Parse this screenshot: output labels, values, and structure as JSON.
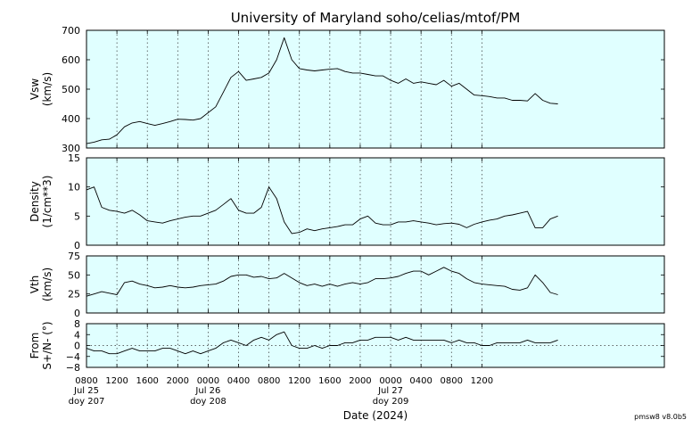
{
  "title": "University of Maryland  soho/celias/mtof/PM",
  "footer_note": "pmsw8 v8.0b5",
  "colors": {
    "panel_bg": "#e0ffff",
    "trace": "#000000",
    "grid": "#333333",
    "zero_line": "#333333"
  },
  "chart_data": [
    {
      "type": "line",
      "panel": "vsw",
      "ylabel_lines": [
        "Vsw",
        "(km/s)"
      ],
      "ylim": [
        300,
        700
      ],
      "yticks": [
        300,
        400,
        500,
        600,
        700
      ],
      "ytick_labels": [
        "300",
        "400",
        "500",
        "600",
        "700"
      ],
      "points": [
        [
          0,
          315
        ],
        [
          1,
          320
        ],
        [
          2,
          328
        ],
        [
          3,
          330
        ],
        [
          4,
          345
        ],
        [
          5,
          372
        ],
        [
          6,
          385
        ],
        [
          7,
          390
        ],
        [
          8,
          383
        ],
        [
          9,
          377
        ],
        [
          10,
          383
        ],
        [
          11,
          390
        ],
        [
          12,
          398
        ],
        [
          13,
          397
        ],
        [
          14,
          395
        ],
        [
          15,
          400
        ],
        [
          16,
          420
        ],
        [
          17,
          440
        ],
        [
          18,
          490
        ],
        [
          19,
          540
        ],
        [
          20,
          560
        ],
        [
          21,
          530
        ],
        [
          22,
          535
        ],
        [
          23,
          540
        ],
        [
          24,
          555
        ],
        [
          25,
          600
        ],
        [
          26,
          675
        ],
        [
          27,
          600
        ],
        [
          28,
          570
        ],
        [
          29,
          565
        ],
        [
          30,
          562
        ],
        [
          31,
          565
        ],
        [
          32,
          568
        ],
        [
          33,
          570
        ],
        [
          34,
          560
        ],
        [
          35,
          555
        ],
        [
          36,
          555
        ],
        [
          37,
          550
        ],
        [
          38,
          545
        ],
        [
          39,
          545
        ],
        [
          40,
          530
        ],
        [
          41,
          520
        ],
        [
          42,
          535
        ],
        [
          43,
          520
        ],
        [
          44,
          525
        ],
        [
          45,
          520
        ],
        [
          46,
          515
        ],
        [
          47,
          530
        ],
        [
          48,
          510
        ],
        [
          49,
          520
        ],
        [
          50,
          500
        ],
        [
          51,
          480
        ],
        [
          52,
          478
        ],
        [
          53,
          475
        ],
        [
          54,
          470
        ],
        [
          55,
          470
        ],
        [
          56,
          462
        ],
        [
          57,
          462
        ],
        [
          58,
          460
        ],
        [
          59,
          485
        ],
        [
          60,
          462
        ],
        [
          61,
          452
        ],
        [
          62,
          450
        ]
      ]
    },
    {
      "type": "line",
      "panel": "density",
      "ylabel_lines": [
        "Density",
        "(1/cm**3)"
      ],
      "ylim": [
        0,
        15
      ],
      "yticks": [
        0,
        5,
        10,
        15
      ],
      "ytick_labels": [
        "0",
        "5",
        "10",
        "15"
      ],
      "points": [
        [
          0,
          9.5
        ],
        [
          1,
          10
        ],
        [
          2,
          6.5
        ],
        [
          3,
          6
        ],
        [
          4,
          5.8
        ],
        [
          5,
          5.5
        ],
        [
          6,
          6
        ],
        [
          7,
          5.2
        ],
        [
          8,
          4.2
        ],
        [
          9,
          4
        ],
        [
          10,
          3.8
        ],
        [
          11,
          4.2
        ],
        [
          12,
          4.5
        ],
        [
          13,
          4.8
        ],
        [
          14,
          5
        ],
        [
          15,
          5
        ],
        [
          16,
          5.5
        ],
        [
          17,
          6
        ],
        [
          18,
          7
        ],
        [
          19,
          8
        ],
        [
          20,
          6
        ],
        [
          21,
          5.5
        ],
        [
          22,
          5.5
        ],
        [
          23,
          6.5
        ],
        [
          24,
          10
        ],
        [
          25,
          8
        ],
        [
          26,
          4
        ],
        [
          27,
          2
        ],
        [
          28,
          2.2
        ],
        [
          29,
          2.8
        ],
        [
          30,
          2.5
        ],
        [
          31,
          2.8
        ],
        [
          32,
          3
        ],
        [
          33,
          3.2
        ],
        [
          34,
          3.5
        ],
        [
          35,
          3.5
        ],
        [
          36,
          4.5
        ],
        [
          37,
          5
        ],
        [
          38,
          3.8
        ],
        [
          39,
          3.5
        ],
        [
          40,
          3.5
        ],
        [
          41,
          4
        ],
        [
          42,
          4
        ],
        [
          43,
          4.2
        ],
        [
          44,
          4
        ],
        [
          45,
          3.8
        ],
        [
          46,
          3.5
        ],
        [
          47,
          3.7
        ],
        [
          48,
          3.8
        ],
        [
          49,
          3.6
        ],
        [
          50,
          3
        ],
        [
          51,
          3.6
        ],
        [
          52,
          4
        ],
        [
          53,
          4.3
        ],
        [
          54,
          4.5
        ],
        [
          55,
          5
        ],
        [
          56,
          5.2
        ],
        [
          57,
          5.5
        ],
        [
          58,
          5.8
        ],
        [
          59,
          3
        ],
        [
          60,
          3
        ],
        [
          61,
          4.5
        ],
        [
          62,
          5
        ]
      ]
    },
    {
      "type": "line",
      "panel": "vth",
      "ylabel_lines": [
        "Vth",
        "(km/s)"
      ],
      "ylim": [
        0,
        75
      ],
      "yticks": [
        0,
        25,
        50,
        75
      ],
      "ytick_labels": [
        "0",
        "25",
        "50",
        "75"
      ],
      "points": [
        [
          0,
          22
        ],
        [
          1,
          25
        ],
        [
          2,
          28
        ],
        [
          3,
          26
        ],
        [
          4,
          24
        ],
        [
          5,
          40
        ],
        [
          6,
          42
        ],
        [
          7,
          38
        ],
        [
          8,
          36
        ],
        [
          9,
          33
        ],
        [
          10,
          34
        ],
        [
          11,
          36
        ],
        [
          12,
          34
        ],
        [
          13,
          33
        ],
        [
          14,
          34
        ],
        [
          15,
          36
        ],
        [
          16,
          37
        ],
        [
          17,
          38
        ],
        [
          18,
          42
        ],
        [
          19,
          48
        ],
        [
          20,
          50
        ],
        [
          21,
          50
        ],
        [
          22,
          47
        ],
        [
          23,
          48
        ],
        [
          24,
          45
        ],
        [
          25,
          46
        ],
        [
          26,
          52
        ],
        [
          27,
          46
        ],
        [
          28,
          40
        ],
        [
          29,
          36
        ],
        [
          30,
          38
        ],
        [
          31,
          35
        ],
        [
          32,
          38
        ],
        [
          33,
          35
        ],
        [
          34,
          38
        ],
        [
          35,
          40
        ],
        [
          36,
          38
        ],
        [
          37,
          40
        ],
        [
          38,
          45
        ],
        [
          39,
          45
        ],
        [
          40,
          46
        ],
        [
          41,
          48
        ],
        [
          42,
          52
        ],
        [
          43,
          55
        ],
        [
          44,
          55
        ],
        [
          45,
          50
        ],
        [
          46,
          55
        ],
        [
          47,
          60
        ],
        [
          48,
          55
        ],
        [
          49,
          52
        ],
        [
          50,
          45
        ],
        [
          51,
          40
        ],
        [
          52,
          38
        ],
        [
          53,
          37
        ],
        [
          54,
          36
        ],
        [
          55,
          35
        ],
        [
          56,
          31
        ],
        [
          57,
          30
        ],
        [
          58,
          33
        ],
        [
          59,
          50
        ],
        [
          60,
          40
        ],
        [
          61,
          27
        ],
        [
          62,
          24
        ]
      ]
    },
    {
      "type": "line",
      "panel": "flow",
      "ylabel_lines": [
        "From",
        "S+/N- (°)"
      ],
      "ylim": [
        -8,
        8
      ],
      "yticks": [
        -8,
        -4,
        0,
        4,
        8
      ],
      "ytick_labels": [
        "−8",
        "−4",
        "0",
        "4",
        "8"
      ],
      "zero_line": true,
      "points": [
        [
          0,
          -1
        ],
        [
          1,
          -2
        ],
        [
          2,
          -2
        ],
        [
          3,
          -3
        ],
        [
          4,
          -3
        ],
        [
          5,
          -2
        ],
        [
          6,
          -1
        ],
        [
          7,
          -2
        ],
        [
          8,
          -2
        ],
        [
          9,
          -2
        ],
        [
          10,
          -1
        ],
        [
          11,
          -1
        ],
        [
          12,
          -2
        ],
        [
          13,
          -3
        ],
        [
          14,
          -2
        ],
        [
          15,
          -3
        ],
        [
          16,
          -2
        ],
        [
          17,
          -1
        ],
        [
          18,
          1
        ],
        [
          19,
          2
        ],
        [
          20,
          1
        ],
        [
          21,
          0
        ],
        [
          22,
          2
        ],
        [
          23,
          3
        ],
        [
          24,
          2
        ],
        [
          25,
          4
        ],
        [
          26,
          5
        ],
        [
          27,
          0
        ],
        [
          28,
          -1
        ],
        [
          29,
          -1
        ],
        [
          30,
          0
        ],
        [
          31,
          -1
        ],
        [
          32,
          0
        ],
        [
          33,
          0
        ],
        [
          34,
          1
        ],
        [
          35,
          1
        ],
        [
          36,
          2
        ],
        [
          37,
          2
        ],
        [
          38,
          3
        ],
        [
          39,
          3
        ],
        [
          40,
          3
        ],
        [
          41,
          2
        ],
        [
          42,
          3
        ],
        [
          43,
          2
        ],
        [
          44,
          2
        ],
        [
          45,
          2
        ],
        [
          46,
          2
        ],
        [
          47,
          2
        ],
        [
          48,
          1
        ],
        [
          49,
          2
        ],
        [
          50,
          1
        ],
        [
          51,
          1
        ],
        [
          52,
          0
        ],
        [
          53,
          0
        ],
        [
          54,
          1
        ],
        [
          55,
          1
        ],
        [
          56,
          1
        ],
        [
          57,
          1
        ],
        [
          58,
          2
        ],
        [
          59,
          1
        ],
        [
          60,
          1
        ],
        [
          61,
          1
        ],
        [
          62,
          2
        ]
      ]
    }
  ],
  "x_axis": {
    "label": "Date (2024)",
    "range_hours": [
      0,
      76
    ],
    "data_end_hours": 62,
    "ticks": [
      {
        "hours": 0,
        "label": "0800"
      },
      {
        "hours": 4,
        "label": "1200"
      },
      {
        "hours": 8,
        "label": "1600"
      },
      {
        "hours": 12,
        "label": "2000"
      },
      {
        "hours": 16,
        "label": "0000"
      },
      {
        "hours": 20,
        "label": "0400"
      },
      {
        "hours": 24,
        "label": "0800"
      },
      {
        "hours": 28,
        "label": "1200"
      },
      {
        "hours": 32,
        "label": "1600"
      },
      {
        "hours": 36,
        "label": "2000"
      },
      {
        "hours": 40,
        "label": "0000"
      },
      {
        "hours": 44,
        "label": "0400"
      },
      {
        "hours": 48,
        "label": "0800"
      },
      {
        "hours": 52,
        "label": "1200"
      }
    ],
    "day_labels": [
      {
        "hours": 0,
        "line1": "Jul 25",
        "line2": "doy 207"
      },
      {
        "hours": 16,
        "line1": "Jul 26",
        "line2": "doy 208"
      },
      {
        "hours": 40,
        "line1": "Jul 27",
        "line2": "doy 209"
      }
    ]
  }
}
